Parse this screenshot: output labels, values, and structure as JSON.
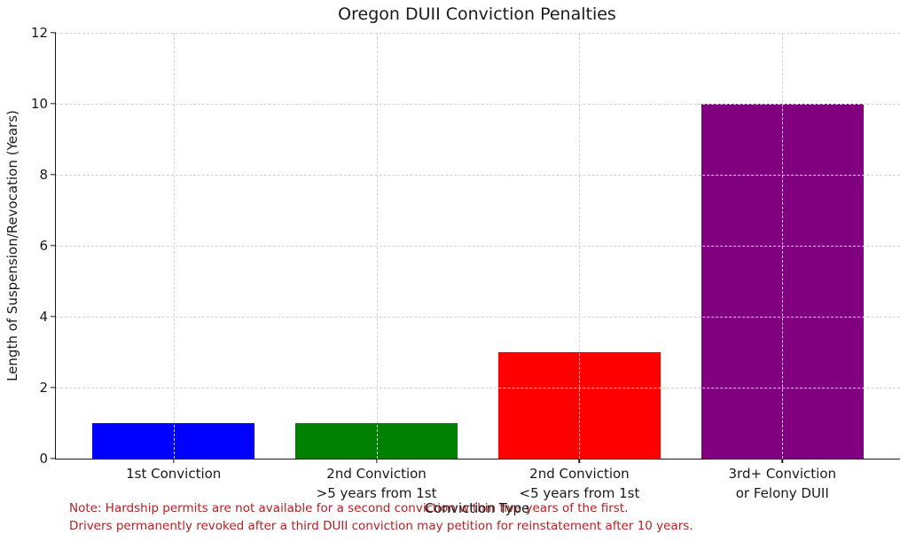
{
  "chart_data": {
    "type": "bar",
    "title": "Oregon DUII Conviction Penalties",
    "xlabel": "Conviction Type",
    "ylabel": "Length of Suspension/Revocation (Years)",
    "categories": [
      "1st Conviction",
      "2nd Conviction\n>5 years from 1st",
      "2nd Conviction\n<5 years from 1st",
      "3rd+ Conviction\nor Felony DUII"
    ],
    "values": [
      1,
      1,
      3,
      10
    ],
    "bar_colors": [
      "#0000ff",
      "#008000",
      "#ff0000",
      "#800080"
    ],
    "ylim": [
      0,
      12
    ],
    "yticks": [
      0,
      2,
      4,
      6,
      8,
      10,
      12
    ],
    "grid": "dashed, light gray, drawn above bars",
    "legend": "none"
  },
  "note": {
    "color": "#b22222",
    "line1": "Note: Hardship permits are not available for a second conviction within five years of the first.",
    "line2": "Drivers permanently revoked after a third DUII conviction may petition for reinstatement after 10 years."
  }
}
